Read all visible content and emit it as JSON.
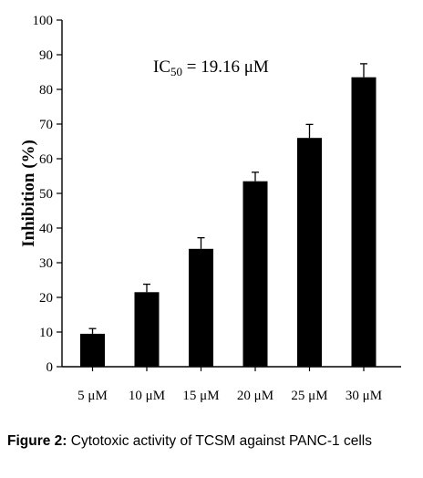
{
  "chart_data": {
    "type": "bar",
    "categories": [
      "5 μM",
      "10 μM",
      "15 μM",
      "20 μM",
      "25 μM",
      "30 μM"
    ],
    "values": [
      9.5,
      21.5,
      34,
      53.5,
      66,
      83.5
    ],
    "errors": [
      1.5,
      2.3,
      3.2,
      2.6,
      3.9,
      3.9
    ],
    "ylabel": "Inhibition (%)",
    "ylim": [
      0,
      100
    ],
    "yticks": [
      0,
      10,
      20,
      30,
      40,
      50,
      60,
      70,
      80,
      90,
      100
    ],
    "bar_color": "#000000",
    "annotation": {
      "prefix": "IC",
      "subscript": "50",
      "suffix": " = 19.16 μM"
    }
  },
  "caption": {
    "label": "Figure 2:",
    "text": " Cytotoxic activity of TCSM against PANC-1 cells"
  }
}
